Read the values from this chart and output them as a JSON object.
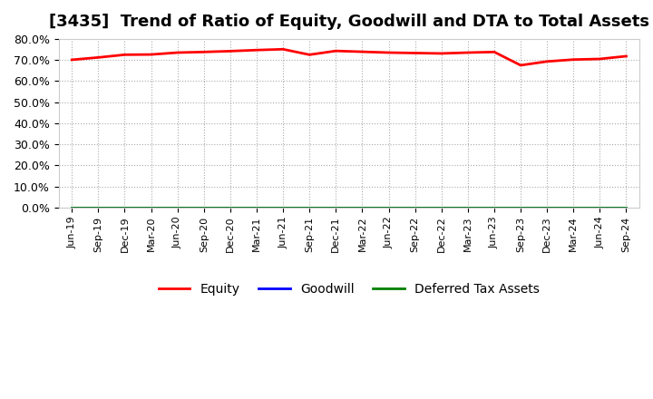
{
  "title": "[3435]  Trend of Ratio of Equity, Goodwill and DTA to Total Assets",
  "x_labels": [
    "Jun-19",
    "Sep-19",
    "Dec-19",
    "Mar-20",
    "Jun-20",
    "Sep-20",
    "Dec-20",
    "Mar-21",
    "Jun-21",
    "Sep-21",
    "Dec-21",
    "Mar-22",
    "Jun-22",
    "Sep-22",
    "Dec-22",
    "Mar-23",
    "Jun-23",
    "Sep-23",
    "Dec-23",
    "Mar-24",
    "Jun-24",
    "Sep-24"
  ],
  "equity": [
    70.1,
    71.2,
    72.5,
    72.6,
    73.5,
    73.8,
    74.2,
    74.7,
    75.1,
    72.5,
    74.3,
    73.9,
    73.5,
    73.3,
    73.1,
    73.5,
    73.8,
    67.5,
    69.3,
    70.2,
    70.5,
    71.8
  ],
  "goodwill": [
    0.0,
    0.0,
    0.0,
    0.0,
    0.0,
    0.0,
    0.0,
    0.0,
    0.0,
    0.0,
    0.0,
    0.0,
    0.0,
    0.0,
    0.0,
    0.0,
    0.0,
    0.0,
    0.0,
    0.0,
    0.0,
    0.0
  ],
  "dta": [
    0.0,
    0.0,
    0.0,
    0.0,
    0.0,
    0.0,
    0.0,
    0.0,
    0.0,
    0.0,
    0.0,
    0.0,
    0.0,
    0.0,
    0.0,
    0.0,
    0.0,
    0.0,
    0.0,
    0.0,
    0.0,
    0.0
  ],
  "equity_color": "#ff0000",
  "goodwill_color": "#0000ff",
  "dta_color": "#008000",
  "ylim": [
    0,
    80
  ],
  "yticks": [
    0,
    10,
    20,
    30,
    40,
    50,
    60,
    70,
    80
  ],
  "ytick_labels": [
    "0.0%",
    "10.0%",
    "20.0%",
    "30.0%",
    "40.0%",
    "50.0%",
    "60.0%",
    "70.0%",
    "80.0%"
  ],
  "background_color": "#ffffff",
  "plot_bg_color": "#ffffff",
  "grid_color": "#aaaaaa",
  "title_fontsize": 13,
  "legend_entries": [
    "Equity",
    "Goodwill",
    "Deferred Tax Assets"
  ]
}
